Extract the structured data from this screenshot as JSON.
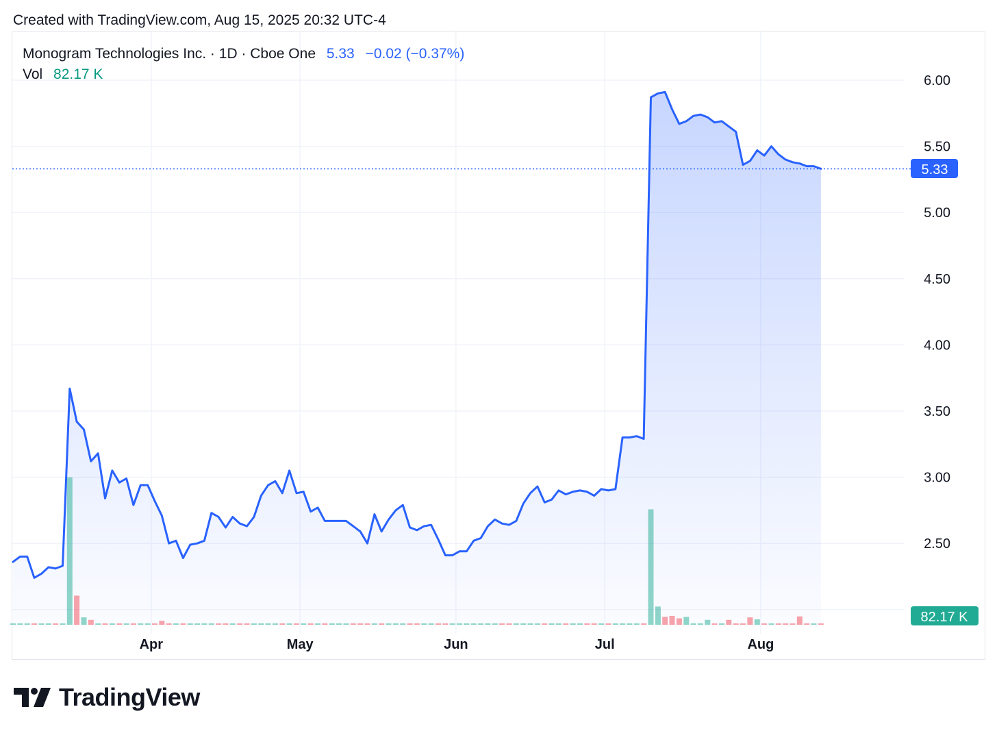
{
  "header": {
    "created_text": "Created with TradingView.com, Aug 15, 2025 20:32 UTC-4"
  },
  "legend": {
    "symbol_text": "Monogram Technologies Inc. · 1D · Cboe One",
    "last": "5.33",
    "change": "−0.02",
    "change_pct": "(−0.37%)",
    "vol_label": "Vol",
    "vol_value": "82.17 K"
  },
  "badges": {
    "price": "5.33",
    "volume": "82.17 K"
  },
  "brand": {
    "name": "TradingView"
  },
  "colors": {
    "line": "#2962ff",
    "vol_up": "#22ab94",
    "vol_down": "#f23645",
    "grid": "#f0f3fa"
  },
  "chart_data": {
    "type": "area",
    "series": [
      {
        "values": [
          2.36,
          2.4,
          2.4,
          2.24,
          2.27,
          2.32,
          2.31,
          2.33,
          3.67,
          3.42,
          3.36,
          3.12,
          3.18,
          2.84,
          3.05,
          2.96,
          2.99,
          2.79,
          2.94,
          2.94,
          2.82,
          2.71,
          2.5,
          2.52,
          2.39,
          2.49,
          2.5,
          2.52,
          2.73,
          2.7,
          2.62,
          2.7,
          2.65,
          2.63,
          2.7,
          2.86,
          2.94,
          2.97,
          2.88,
          3.05,
          2.88,
          2.89,
          2.74,
          2.77,
          2.67,
          2.67,
          2.67,
          2.67,
          2.63,
          2.59,
          2.5,
          2.72,
          2.59,
          2.68,
          2.75,
          2.79,
          2.62,
          2.6,
          2.63,
          2.64,
          2.53,
          2.41,
          2.41,
          2.44,
          2.44,
          2.52,
          2.54,
          2.63,
          2.68,
          2.65,
          2.64,
          2.67,
          2.8,
          2.88,
          2.93,
          2.81,
          2.83,
          2.9,
          2.87,
          2.89,
          2.9,
          2.89,
          2.86,
          2.91,
          2.9,
          2.91,
          3.3,
          3.3,
          3.31,
          3.29,
          5.87,
          5.9,
          5.91,
          5.78,
          5.67,
          5.69,
          5.73,
          5.74,
          5.72,
          5.68,
          5.69,
          5.65,
          5.61,
          5.36,
          5.39,
          5.47,
          5.43,
          5.5,
          5.44,
          5.4,
          5.38,
          5.37,
          5.35,
          5.35,
          5.33
        ]
      }
    ],
    "volume": [
      {
        "i": 8,
        "v": 2990,
        "dir": "up"
      },
      {
        "i": 9,
        "v": 590,
        "dir": "down"
      },
      {
        "i": 10,
        "v": 150,
        "dir": "up"
      },
      {
        "i": 11,
        "v": 100,
        "dir": "down"
      },
      {
        "i": 21,
        "v": 80,
        "dir": "down"
      },
      {
        "i": 90,
        "v": 2340,
        "dir": "up"
      },
      {
        "i": 91,
        "v": 370,
        "dir": "up"
      },
      {
        "i": 92,
        "v": 160,
        "dir": "down"
      },
      {
        "i": 93,
        "v": 180,
        "dir": "down"
      },
      {
        "i": 94,
        "v": 130,
        "dir": "down"
      },
      {
        "i": 95,
        "v": 160,
        "dir": "up"
      },
      {
        "i": 98,
        "v": 100,
        "dir": "up"
      },
      {
        "i": 101,
        "v": 100,
        "dir": "down"
      },
      {
        "i": 104,
        "v": 150,
        "dir": "down"
      },
      {
        "i": 105,
        "v": 110,
        "dir": "up"
      },
      {
        "i": 111,
        "v": 170,
        "dir": "down"
      }
    ],
    "x_labels": [
      {
        "label": "Apr",
        "i": 19.5
      },
      {
        "label": "May",
        "i": 40.5
      },
      {
        "label": "Jun",
        "i": 62.5
      },
      {
        "label": "Jul",
        "i": 83.5
      },
      {
        "label": "Aug",
        "i": 105.5
      }
    ],
    "y_ticks": [
      "6.00",
      "5.50",
      "5.00",
      "4.50",
      "4.00",
      "3.50",
      "3.00",
      "2.50"
    ],
    "y_range": [
      2.0,
      6.0
    ],
    "last_price": 5.33,
    "grid": true
  }
}
